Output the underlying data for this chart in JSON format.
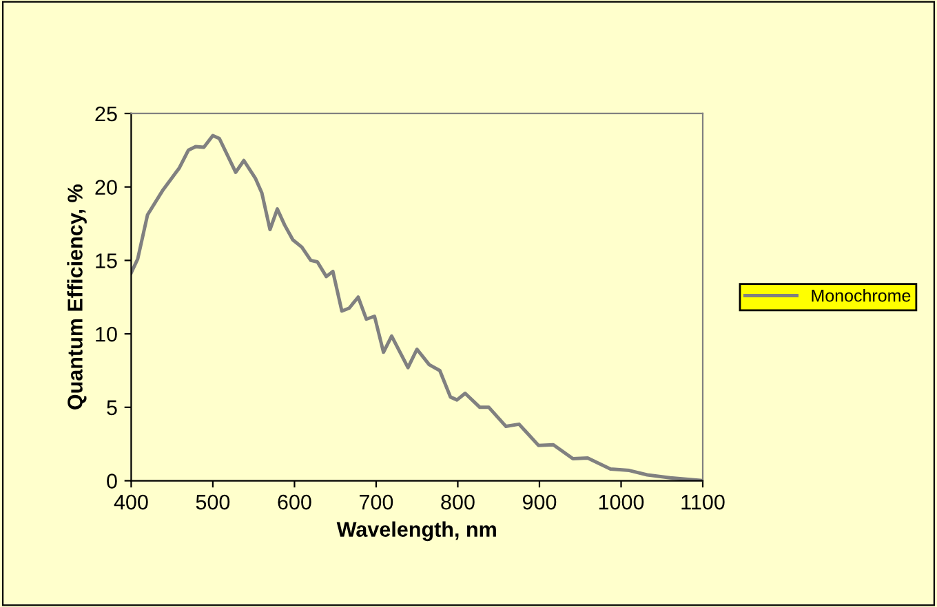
{
  "chart_data": {
    "type": "line",
    "xlabel": "Wavelength, nm",
    "ylabel": "Quantum Efficiency, %",
    "xlim": [
      400,
      1100
    ],
    "xticks": [
      400,
      500,
      600,
      700,
      800,
      900,
      1000,
      1100
    ],
    "ylim": [
      0,
      25
    ],
    "yticks": [
      0,
      5,
      10,
      15,
      20,
      25
    ],
    "grid": false,
    "legend": "right",
    "marker": "none",
    "line_style": "solid",
    "series": [
      {
        "name": "Monochrome",
        "color": "#808080",
        "x": [
          400,
          408,
          420,
          439,
          451,
          459,
          470,
          479,
          489,
          500,
          508,
          528,
          538,
          552,
          560,
          570,
          579,
          588,
          598,
          609,
          620,
          628,
          639,
          647,
          658,
          667,
          678,
          688,
          698,
          709,
          719,
          739,
          750,
          765,
          778,
          791,
          799,
          809,
          827,
          838,
          859,
          875,
          899,
          917,
          941,
          959,
          987,
          1010,
          1032,
          1060,
          1097,
          1100
        ],
        "values": [
          14.15,
          15.1,
          18.1,
          19.8,
          20.7,
          21.3,
          22.5,
          22.75,
          22.7,
          23.5,
          23.3,
          21.0,
          21.8,
          20.6,
          19.6,
          17.1,
          18.5,
          17.4,
          16.4,
          15.9,
          15.0,
          14.9,
          13.9,
          14.25,
          11.55,
          11.75,
          12.5,
          11.0,
          11.2,
          8.75,
          9.85,
          7.7,
          8.95,
          7.9,
          7.5,
          5.7,
          5.5,
          5.95,
          5.0,
          5.0,
          3.7,
          3.85,
          2.4,
          2.45,
          1.5,
          1.55,
          0.8,
          0.7,
          0.4,
          0.2,
          0.03,
          0
        ]
      }
    ]
  }
}
